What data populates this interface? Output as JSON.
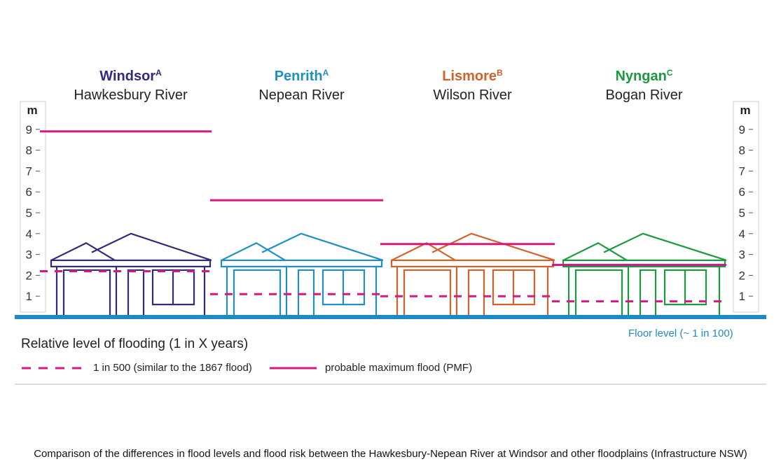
{
  "chart_data": {
    "type": "bar",
    "unit": "m",
    "ylim": [
      0,
      10
    ],
    "yticks": [
      "1",
      "2",
      "3",
      "4",
      "5",
      "6",
      "7",
      "8",
      "9"
    ],
    "series_legend": {
      "title": "Relative level of flooding (1 in X years)",
      "dashed_label": "1 in 500 (similar to the 1867 flood)",
      "solid_label": "probable maximum flood (PMF)",
      "flood_color": "#d6187f"
    },
    "floor_note": "Floor level (~ 1 in 100)",
    "locations": [
      {
        "town": "Windsor",
        "sup": "A",
        "river": "Hawkesbury River",
        "color": "#2f2b7a",
        "flood_1in500": 2.2,
        "pmf": 8.9
      },
      {
        "town": "Penrith",
        "sup": "A",
        "river": "Nepean River",
        "color": "#1f8fc2",
        "flood_1in500": 1.1,
        "pmf": 5.6
      },
      {
        "town": "Lismore",
        "sup": "B",
        "river": "Wilson River",
        "color": "#d2622a",
        "flood_1in500": 1.0,
        "pmf": 3.5
      },
      {
        "town": "Nyngan",
        "sup": "C",
        "river": "Bogan River",
        "color": "#1a9a3e",
        "flood_1in500": 0.75,
        "pmf": 2.5
      }
    ],
    "ground_color": "#1e8ac4"
  },
  "caption": "Comparison of the differences in flood levels and flood risk between the Hawkesbury-Nepean River at Windsor and other floodplains (Infrastructure NSW)"
}
